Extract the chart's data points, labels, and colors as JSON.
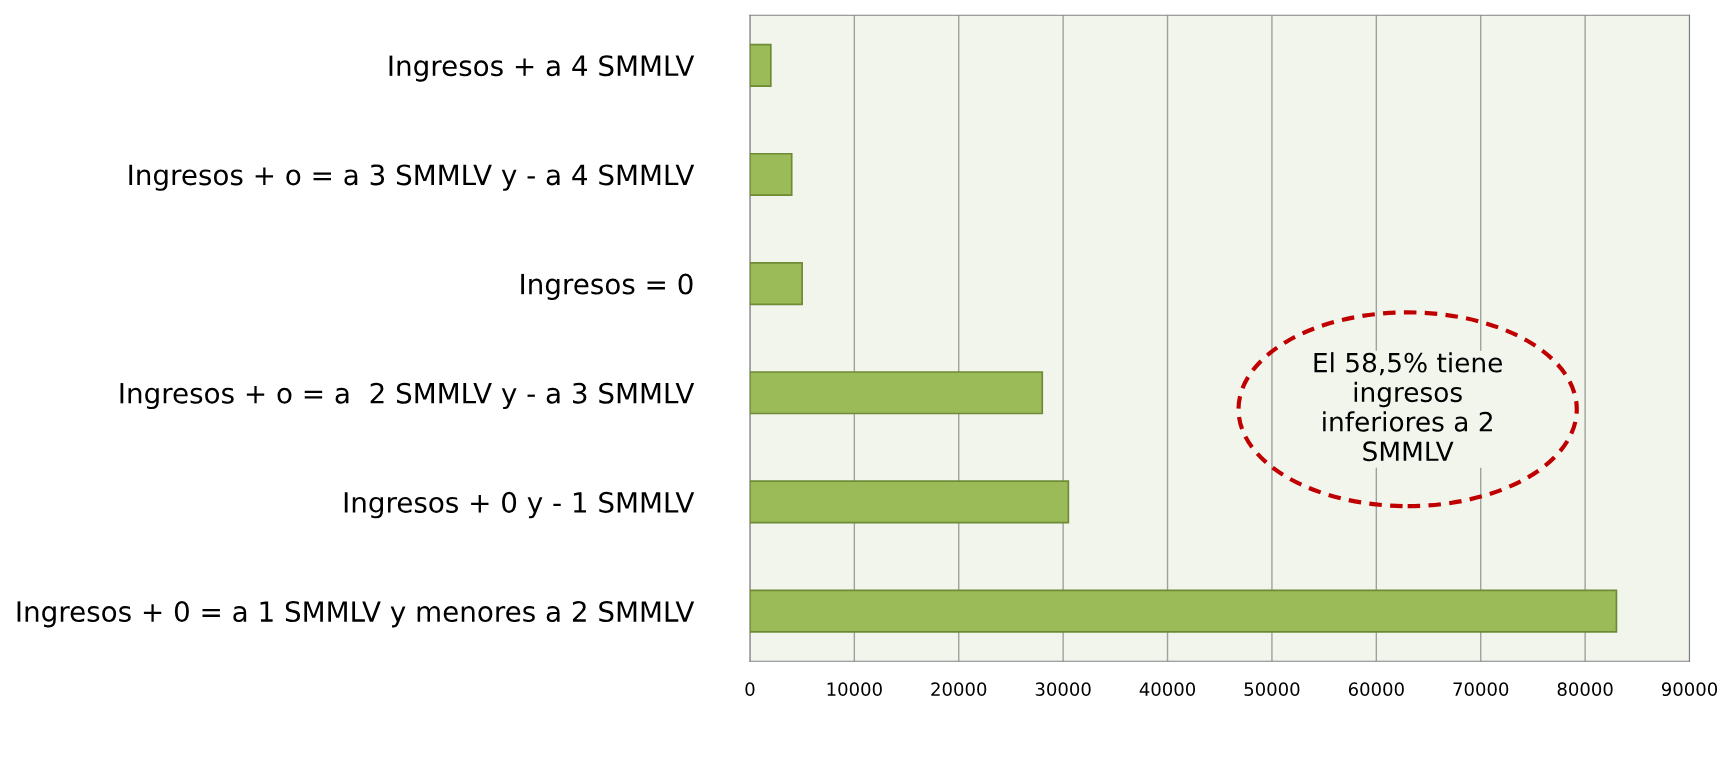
{
  "chart_data": {
    "type": "bar",
    "orientation": "horizontal",
    "categories": [
      "Ingresos + a 4 SMMLV",
      "Ingresos + o = a 3 SMMLV y - a 4 SMMLV",
      "Ingresos = 0",
      "Ingresos + o = a  2 SMMLV y - a 3 SMMLV",
      "Ingresos + 0 y - 1 SMMLV",
      "Ingresos + 0 = a 1 SMMLV y menores a 2 SMMLV"
    ],
    "values": [
      2000,
      4000,
      5000,
      28000,
      30500,
      83000
    ],
    "color": "#9bbb59",
    "xlim": [
      0,
      90000
    ],
    "xticks": [
      0,
      10000,
      20000,
      30000,
      40000,
      50000,
      60000,
      70000,
      80000,
      90000
    ],
    "grid": "x",
    "annotations": [
      "El 58,5% tiene ingresos inferiores a 2 SMMLV"
    ]
  }
}
